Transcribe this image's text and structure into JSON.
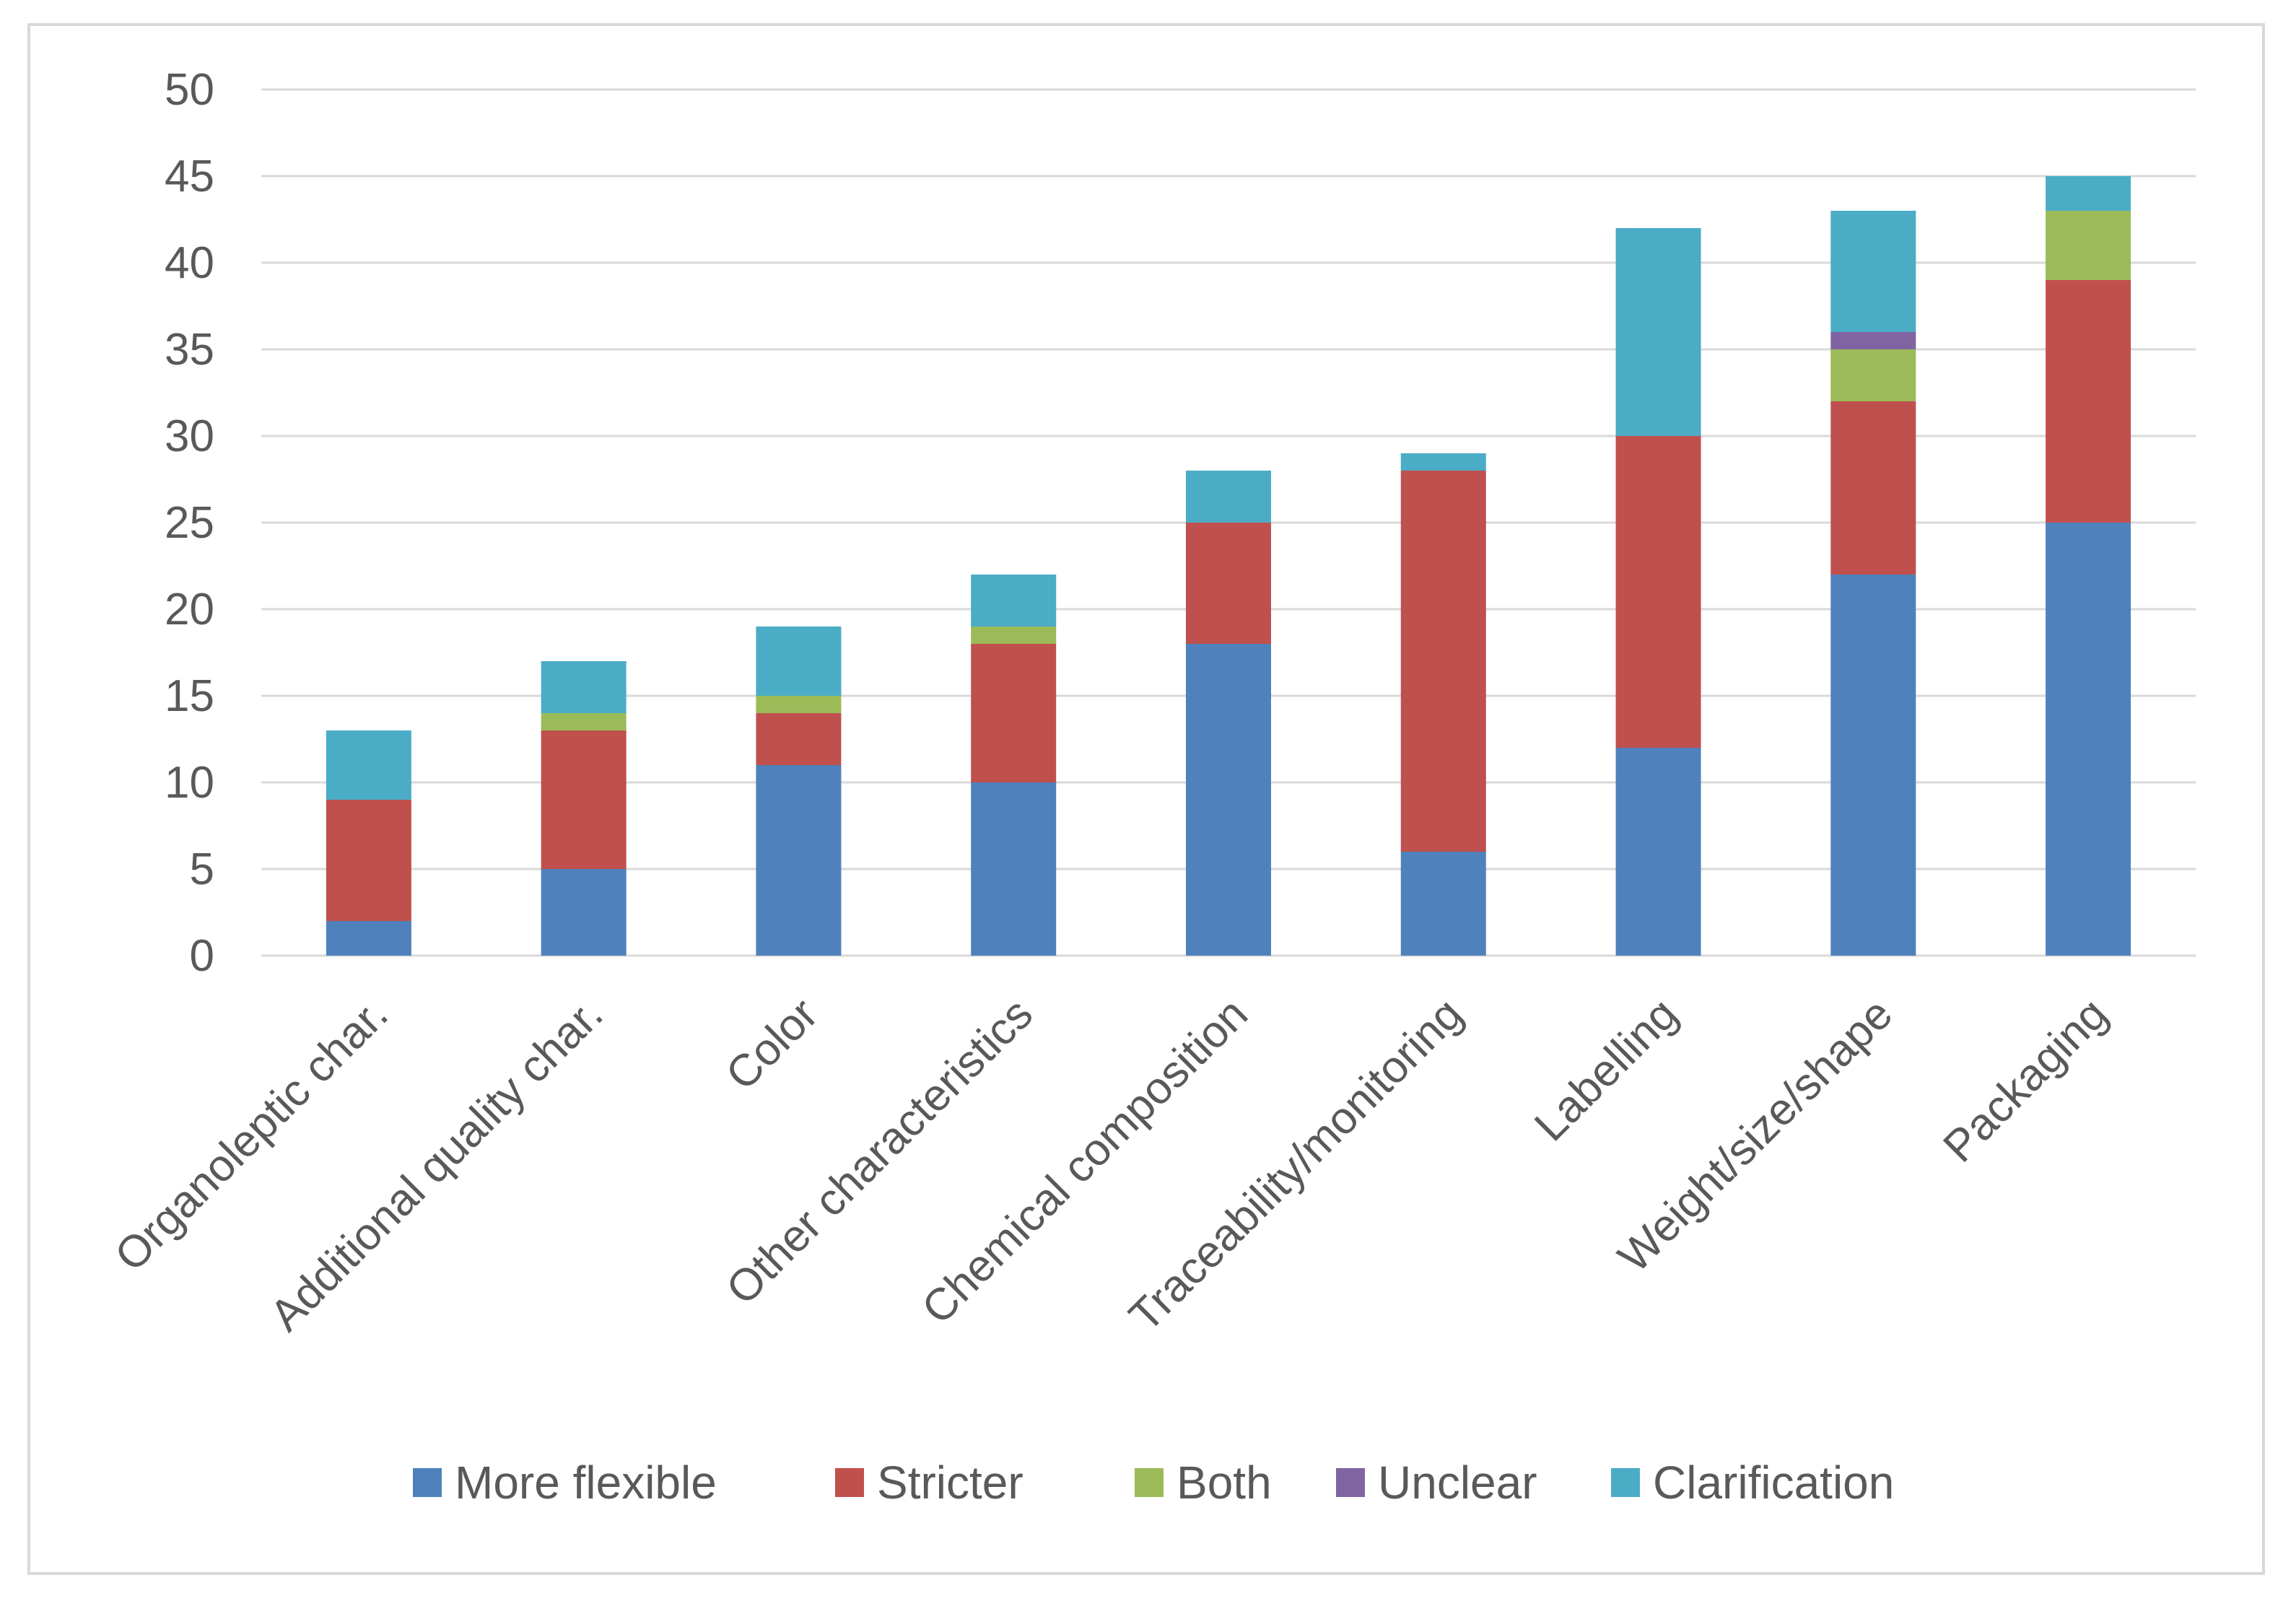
{
  "chart_data": {
    "type": "bar",
    "stacked": true,
    "title": "",
    "xlabel": "",
    "ylabel": "",
    "ylim": [
      0,
      50
    ],
    "yticks": [
      0,
      5,
      10,
      15,
      20,
      25,
      30,
      35,
      40,
      45,
      50
    ],
    "grid": true,
    "legend_position": "bottom",
    "categories": [
      "Organoleptic char.",
      "Additional quality char.",
      "Color",
      "Other characteristics",
      "Chemical composition",
      "Traceability/monitoring",
      "Labelling",
      "Weight/size/shape",
      "Packaging"
    ],
    "series": [
      {
        "name": "More flexible",
        "color": "#4f81bd",
        "values": [
          2,
          5,
          11,
          10,
          18,
          6,
          12,
          22,
          25
        ]
      },
      {
        "name": "Stricter",
        "color": "#c0504d",
        "values": [
          7,
          8,
          3,
          8,
          7,
          22,
          18,
          10,
          14
        ]
      },
      {
        "name": "Both",
        "color": "#9bbb59",
        "values": [
          0,
          1,
          1,
          1,
          0,
          0,
          0,
          3,
          4
        ]
      },
      {
        "name": "Unclear",
        "color": "#8064a2",
        "values": [
          0,
          0,
          0,
          0,
          0,
          0,
          0,
          1,
          0
        ]
      },
      {
        "name": "Clarification",
        "color": "#4bacc6",
        "values": [
          4,
          3,
          4,
          3,
          3,
          1,
          12,
          7,
          2
        ]
      }
    ]
  }
}
